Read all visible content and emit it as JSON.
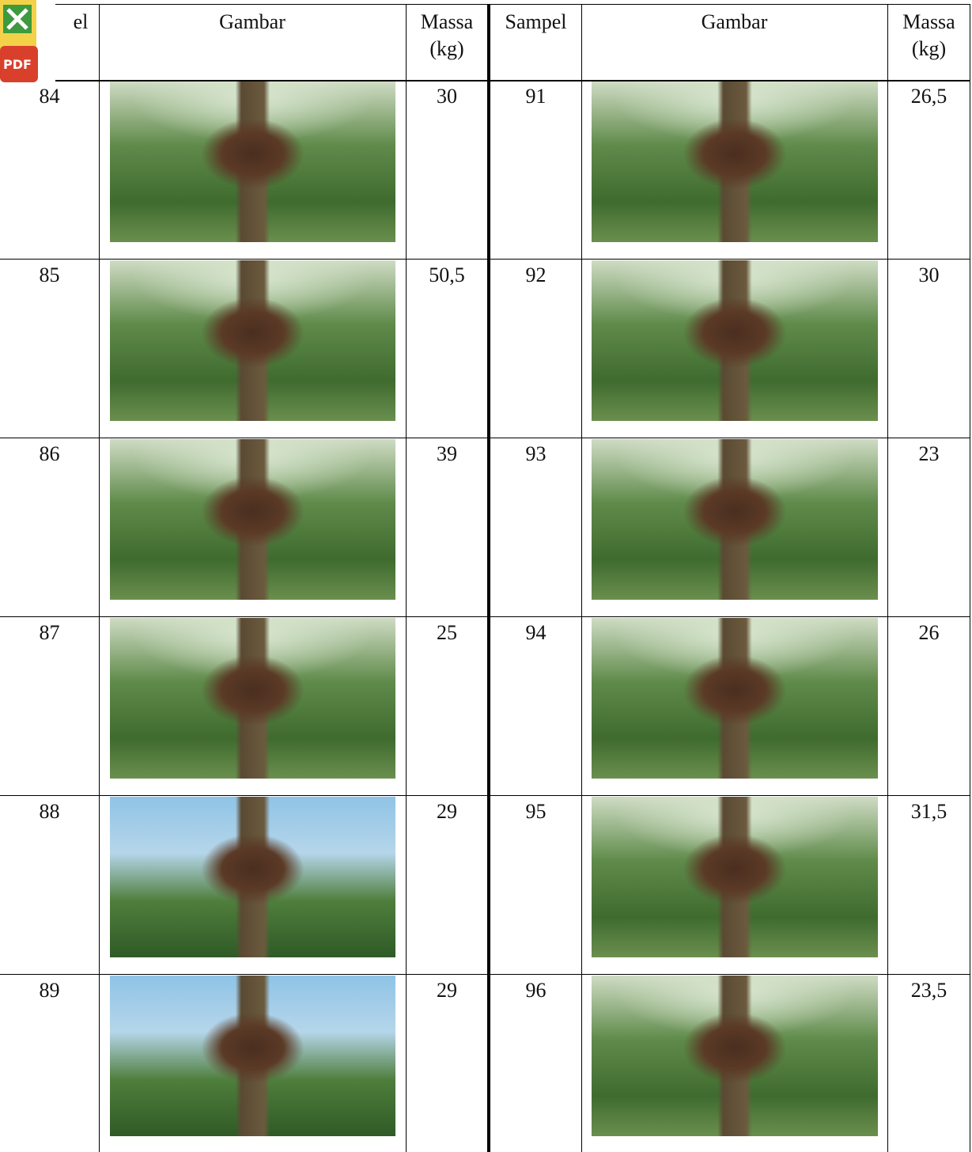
{
  "header": {
    "columns": [
      "el",
      "Gambar",
      "Massa (kg)",
      "Sampel",
      "Gambar",
      "Massa (kg)"
    ]
  },
  "table": {
    "rows": [
      [
        "84",
        "30",
        "91",
        "26,5"
      ],
      [
        "85",
        "50,5",
        "92",
        "30"
      ],
      [
        "86",
        "39",
        "93",
        "23"
      ],
      [
        "87",
        "25",
        "94",
        "26"
      ],
      [
        "88",
        "29",
        "95",
        "31,5"
      ],
      [
        "89",
        "29",
        "96",
        "23,5"
      ]
    ]
  }
}
